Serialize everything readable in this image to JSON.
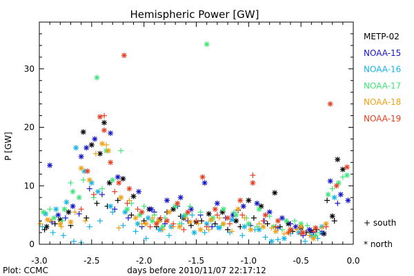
{
  "chart_data": {
    "type": "scatter",
    "title": "Hemispheric Power [GW]",
    "xlabel": "days before 2010/11/07 22:17:12",
    "ylabel": "P [GW]",
    "xlim": [
      -3.0,
      0.0
    ],
    "ylim": [
      0,
      38
    ],
    "x_ticks": [
      -3.0,
      -2.5,
      -2.0,
      -1.5,
      -1.0,
      -0.5,
      0.0
    ],
    "x_tick_labels": [
      "-3.0",
      "-2.5",
      "-2.0",
      "-1.5",
      "-1.0",
      "-0.5",
      "0.0"
    ],
    "y_ticks": [
      0,
      10,
      20,
      30
    ],
    "y_tick_labels": [
      "0",
      "10",
      "20",
      "30"
    ],
    "grid": false,
    "legend_placement": "right",
    "marker_legend": {
      "south_label": "+ south",
      "north_label": "* north"
    },
    "credit": "Plot: CCMC",
    "series": [
      {
        "name": "METP-02",
        "color": "#000000",
        "north": [
          [
            -2.93,
            3.0
          ],
          [
            -2.8,
            4.2
          ],
          [
            -2.72,
            5.5
          ],
          [
            -2.58,
            19.2
          ],
          [
            -2.5,
            17.0
          ],
          [
            -2.42,
            15.5
          ],
          [
            -2.38,
            20.8
          ],
          [
            -2.33,
            10.5
          ],
          [
            -2.2,
            11.2
          ],
          [
            -2.1,
            8.2
          ],
          [
            -1.95,
            6.0
          ],
          [
            -1.85,
            4.2
          ],
          [
            -1.72,
            6.0
          ],
          [
            -1.62,
            4.5
          ],
          [
            -1.5,
            3.8
          ],
          [
            -1.38,
            5.2
          ],
          [
            -1.25,
            5.5
          ],
          [
            -1.12,
            4.0
          ],
          [
            -1.0,
            7.5
          ],
          [
            -0.88,
            6.5
          ],
          [
            -0.75,
            8.8
          ],
          [
            -0.62,
            3.5
          ],
          [
            -0.5,
            2.8
          ],
          [
            -0.4,
            2.2
          ],
          [
            -0.28,
            1.8
          ],
          [
            -0.2,
            4.8
          ],
          [
            -0.15,
            14.5
          ],
          [
            -0.1,
            12.8
          ]
        ],
        "south": [
          [
            -2.95,
            2.5
          ],
          [
            -2.85,
            3.5
          ],
          [
            -2.7,
            3.2
          ],
          [
            -2.55,
            4.5
          ],
          [
            -2.45,
            7.0
          ],
          [
            -2.35,
            6.5
          ],
          [
            -2.25,
            7.5
          ],
          [
            -2.12,
            5.0
          ],
          [
            -2.0,
            4.0
          ],
          [
            -1.88,
            3.0
          ],
          [
            -1.78,
            5.5
          ],
          [
            -1.65,
            4.8
          ],
          [
            -1.55,
            3.2
          ],
          [
            -1.45,
            4.0
          ],
          [
            -1.32,
            3.5
          ],
          [
            -1.2,
            2.5
          ],
          [
            -1.08,
            3.0
          ],
          [
            -0.95,
            4.5
          ],
          [
            -0.82,
            3.5
          ],
          [
            -0.7,
            3.0
          ],
          [
            -0.58,
            2.2
          ],
          [
            -0.45,
            2.0
          ],
          [
            -0.35,
            2.5
          ],
          [
            -0.25,
            7.5
          ],
          [
            -0.18,
            4.0
          ]
        ]
      },
      {
        "name": "NOAA-15",
        "color": "#1414c8",
        "north": [
          [
            -2.9,
            13.5
          ],
          [
            -2.82,
            5.0
          ],
          [
            -2.68,
            6.5
          ],
          [
            -2.6,
            15.0
          ],
          [
            -2.55,
            16.5
          ],
          [
            -2.47,
            18.0
          ],
          [
            -2.32,
            19.0
          ],
          [
            -2.25,
            11.5
          ],
          [
            -2.05,
            9.0
          ],
          [
            -1.93,
            6.0
          ],
          [
            -1.78,
            7.5
          ],
          [
            -1.65,
            8.0
          ],
          [
            -1.55,
            6.0
          ],
          [
            -1.42,
            10.5
          ],
          [
            -1.3,
            7.0
          ],
          [
            -1.15,
            5.0
          ],
          [
            -1.05,
            6.5
          ],
          [
            -0.92,
            7.0
          ],
          [
            -0.8,
            5.5
          ],
          [
            -0.68,
            4.5
          ],
          [
            -0.55,
            3.0
          ],
          [
            -0.42,
            2.5
          ],
          [
            -0.3,
            2.0
          ],
          [
            -0.22,
            10.8
          ],
          [
            -0.12,
            8.5
          ],
          [
            -0.05,
            7.5
          ]
        ],
        "south": [
          [
            -2.88,
            3.8
          ],
          [
            -2.75,
            4.5
          ],
          [
            -2.62,
            5.2
          ],
          [
            -2.52,
            9.5
          ],
          [
            -2.4,
            8.5
          ],
          [
            -2.28,
            6.0
          ],
          [
            -2.15,
            4.5
          ],
          [
            -2.02,
            3.0
          ],
          [
            -1.9,
            5.5
          ],
          [
            -1.8,
            3.5
          ],
          [
            -1.68,
            6.5
          ],
          [
            -1.58,
            4.0
          ],
          [
            -1.46,
            5.0
          ],
          [
            -1.35,
            3.0
          ],
          [
            -1.22,
            4.5
          ],
          [
            -1.1,
            5.8
          ],
          [
            -0.98,
            3.2
          ],
          [
            -0.85,
            4.0
          ],
          [
            -0.72,
            2.8
          ],
          [
            -0.6,
            3.5
          ],
          [
            -0.48,
            1.5
          ],
          [
            -0.38,
            2.0
          ],
          [
            -0.15,
            7.0
          ]
        ]
      },
      {
        "name": "NOAA-16",
        "color": "#14b4e6",
        "north": [
          [
            -2.94,
            5.2
          ],
          [
            -2.84,
            6.0
          ],
          [
            -2.74,
            7.2
          ],
          [
            -2.65,
            16.5
          ],
          [
            -2.57,
            12.5
          ],
          [
            -2.5,
            10.5
          ],
          [
            -2.44,
            9.0
          ],
          [
            -2.32,
            6.5
          ],
          [
            -2.18,
            5.5
          ],
          [
            -2.06,
            3.5
          ],
          [
            -1.96,
            4.5
          ],
          [
            -1.84,
            2.5
          ],
          [
            -1.74,
            3.0
          ],
          [
            -1.62,
            4.8
          ],
          [
            -1.52,
            2.0
          ],
          [
            -1.4,
            3.5
          ],
          [
            -1.28,
            2.8
          ],
          [
            -1.16,
            4.2
          ],
          [
            -1.04,
            3.0
          ],
          [
            -0.9,
            2.5
          ],
          [
            -0.78,
            0.5
          ],
          [
            -0.66,
            1.0
          ],
          [
            -0.52,
            2.0
          ],
          [
            -0.4,
            1.5
          ],
          [
            -0.3,
            3.0
          ],
          [
            -0.18,
            8.0
          ]
        ],
        "south": [
          [
            -2.97,
            3.0
          ],
          [
            -2.87,
            2.0
          ],
          [
            -2.77,
            1.5
          ],
          [
            -2.67,
            0.5
          ],
          [
            -2.6,
            0.3
          ],
          [
            -2.52,
            3.0
          ],
          [
            -2.42,
            4.0
          ],
          [
            -2.3,
            5.5
          ],
          [
            -2.2,
            3.2
          ],
          [
            -2.08,
            2.2
          ],
          [
            -1.98,
            1.0
          ],
          [
            -1.86,
            2.5
          ],
          [
            -1.76,
            1.5
          ],
          [
            -1.64,
            3.5
          ],
          [
            -1.54,
            5.0
          ],
          [
            -1.42,
            2.0
          ],
          [
            -1.3,
            3.0
          ],
          [
            -1.18,
            2.0
          ],
          [
            -1.06,
            1.5
          ],
          [
            -0.94,
            2.5
          ],
          [
            -0.84,
            1.2
          ],
          [
            -0.72,
            0.8
          ],
          [
            -0.6,
            1.8
          ],
          [
            -0.46,
            0.5
          ],
          [
            -0.34,
            1.0
          ]
        ]
      },
      {
        "name": "NOAA-17",
        "color": "#3ce678",
        "north": [
          [
            -2.96,
            5.5
          ],
          [
            -2.86,
            4.5
          ],
          [
            -2.76,
            6.0
          ],
          [
            -2.68,
            9.0
          ],
          [
            -2.62,
            8.0
          ],
          [
            -2.45,
            28.5
          ],
          [
            -2.36,
            16.0
          ],
          [
            -2.3,
            11.0
          ],
          [
            -2.16,
            6.0
          ],
          [
            -2.04,
            5.0
          ],
          [
            -1.92,
            4.0
          ],
          [
            -1.82,
            3.0
          ],
          [
            -1.7,
            6.5
          ],
          [
            -1.6,
            5.0
          ],
          [
            -1.4,
            34.2
          ],
          [
            -1.34,
            4.5
          ],
          [
            -1.24,
            6.0
          ],
          [
            -1.12,
            5.0
          ],
          [
            -1.0,
            3.5
          ],
          [
            -0.9,
            6.0
          ],
          [
            -0.76,
            3.0
          ],
          [
            -0.64,
            4.0
          ],
          [
            -0.5,
            3.5
          ],
          [
            -0.36,
            1.5
          ],
          [
            -0.24,
            8.5
          ],
          [
            -0.14,
            10.5
          ],
          [
            -0.06,
            11.8
          ]
        ],
        "south": [
          [
            -2.9,
            6.0
          ],
          [
            -2.78,
            4.0
          ],
          [
            -2.7,
            10.5
          ],
          [
            -2.58,
            11.0
          ],
          [
            -2.48,
            8.0
          ],
          [
            -2.4,
            9.5
          ],
          [
            -2.22,
            16.0
          ],
          [
            -2.12,
            7.0
          ],
          [
            -2.0,
            6.5
          ],
          [
            -1.9,
            5.0
          ],
          [
            -1.8,
            4.5
          ],
          [
            -1.66,
            3.5
          ],
          [
            -1.56,
            6.5
          ],
          [
            -1.46,
            5.5
          ],
          [
            -1.36,
            4.0
          ],
          [
            -1.26,
            3.2
          ],
          [
            -1.14,
            5.5
          ],
          [
            -1.02,
            4.5
          ],
          [
            -0.92,
            3.0
          ],
          [
            -0.8,
            4.8
          ],
          [
            -0.68,
            2.5
          ],
          [
            -0.56,
            4.0
          ],
          [
            -0.44,
            3.2
          ],
          [
            -0.32,
            2.0
          ],
          [
            -0.2,
            9.5
          ],
          [
            -0.1,
            11.5
          ]
        ]
      },
      {
        "name": "NOAA-18",
        "color": "#f0a014",
        "north": [
          [
            -2.92,
            4.2
          ],
          [
            -2.8,
            3.5
          ],
          [
            -2.7,
            3.8
          ],
          [
            -2.6,
            13.0
          ],
          [
            -2.52,
            11.0
          ],
          [
            -2.4,
            17.2
          ],
          [
            -2.34,
            16.0
          ],
          [
            -2.22,
            8.0
          ],
          [
            -2.08,
            4.5
          ],
          [
            -1.98,
            3.5
          ],
          [
            -1.86,
            4.0
          ],
          [
            -1.76,
            5.5
          ],
          [
            -1.66,
            3.0
          ],
          [
            -1.56,
            3.8
          ],
          [
            -1.46,
            2.5
          ],
          [
            -1.36,
            4.2
          ],
          [
            -1.24,
            3.5
          ],
          [
            -1.1,
            6.0
          ],
          [
            -0.98,
            2.5
          ],
          [
            -0.86,
            3.0
          ],
          [
            -0.74,
            2.2
          ],
          [
            -0.62,
            2.0
          ],
          [
            -0.5,
            3.0
          ],
          [
            -0.38,
            1.0
          ],
          [
            -0.26,
            3.5
          ]
        ],
        "south": [
          [
            -2.99,
            3.5
          ],
          [
            -2.89,
            4.0
          ],
          [
            -2.79,
            3.0
          ],
          [
            -2.66,
            5.5
          ],
          [
            -2.56,
            4.0
          ],
          [
            -2.46,
            15.5
          ],
          [
            -2.36,
            17.0
          ],
          [
            -2.24,
            2.8
          ],
          [
            -2.14,
            7.5
          ],
          [
            -2.02,
            3.5
          ],
          [
            -1.92,
            4.5
          ],
          [
            -1.82,
            2.5
          ],
          [
            -1.72,
            3.0
          ],
          [
            -1.6,
            4.5
          ],
          [
            -1.48,
            3.5
          ],
          [
            -1.38,
            2.5
          ],
          [
            -1.28,
            4.5
          ],
          [
            -1.16,
            2.2
          ],
          [
            -1.04,
            4.5
          ],
          [
            -0.9,
            3.5
          ],
          [
            -0.78,
            2.8
          ],
          [
            -0.66,
            1.8
          ],
          [
            -0.54,
            2.5
          ],
          [
            -0.42,
            1.5
          ],
          [
            -0.3,
            2.8
          ]
        ]
      },
      {
        "name": "NOAA-19",
        "color": "#e63c1e",
        "north": [
          [
            -2.54,
            12.5
          ],
          [
            -2.42,
            21.8
          ],
          [
            -2.38,
            19.5
          ],
          [
            -2.32,
            14.0
          ],
          [
            -2.24,
            10.5
          ],
          [
            -2.19,
            32.3
          ],
          [
            -2.14,
            9.5
          ],
          [
            -2.02,
            5.5
          ],
          [
            -1.88,
            3.5
          ],
          [
            -1.78,
            4.0
          ],
          [
            -1.68,
            7.0
          ],
          [
            -1.58,
            5.5
          ],
          [
            -1.44,
            11.5
          ],
          [
            -1.32,
            6.0
          ],
          [
            -1.2,
            4.5
          ],
          [
            -1.08,
            7.5
          ],
          [
            -0.96,
            10.5
          ],
          [
            -0.84,
            5.0
          ],
          [
            -0.72,
            4.0
          ],
          [
            -0.6,
            2.5
          ],
          [
            -0.48,
            2.0
          ],
          [
            -0.36,
            2.8
          ],
          [
            -0.22,
            24.0
          ],
          [
            -0.16,
            10.0
          ],
          [
            -0.06,
            13.2
          ]
        ],
        "south": [
          [
            -2.6,
            6.0
          ],
          [
            -2.48,
            8.5
          ],
          [
            -2.38,
            22.0
          ],
          [
            -2.28,
            9.0
          ],
          [
            -2.16,
            7.0
          ],
          [
            -2.06,
            6.0
          ],
          [
            -1.94,
            3.0
          ],
          [
            -1.84,
            4.5
          ],
          [
            -1.72,
            3.5
          ],
          [
            -1.62,
            2.5
          ],
          [
            -1.5,
            4.0
          ],
          [
            -1.4,
            3.0
          ],
          [
            -1.3,
            5.0
          ],
          [
            -1.18,
            3.5
          ],
          [
            -1.06,
            5.0
          ],
          [
            -0.96,
            11.8
          ],
          [
            -0.86,
            4.0
          ],
          [
            -0.74,
            3.0
          ],
          [
            -0.62,
            2.0
          ],
          [
            -0.5,
            1.8
          ],
          [
            -0.38,
            2.2
          ],
          [
            -0.26,
            3.0
          ]
        ]
      }
    ]
  }
}
